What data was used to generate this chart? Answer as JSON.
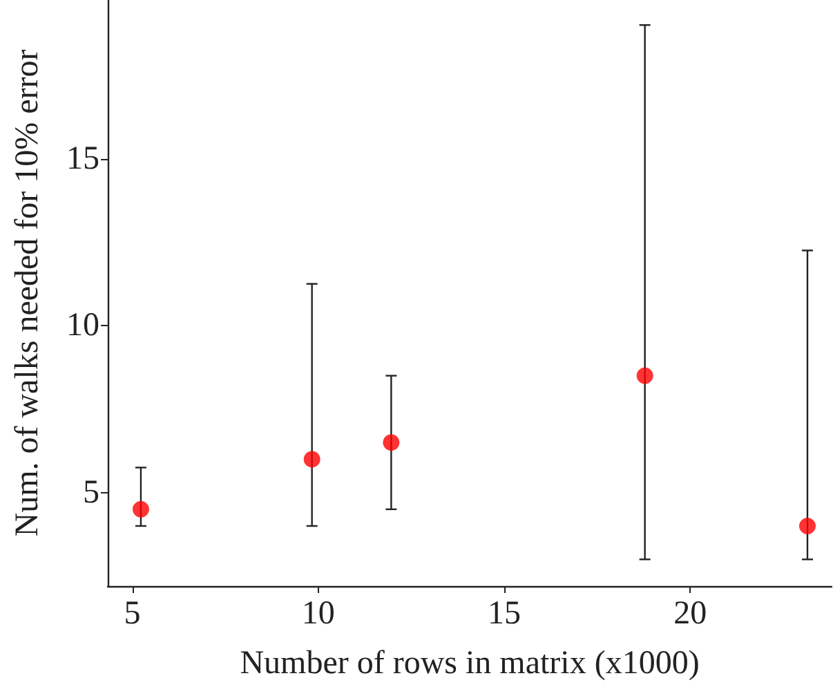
{
  "chart_data": {
    "type": "scatter",
    "xlabel": "Number of rows in matrix (x1000)",
    "ylabel": "Num. of walks needed for 10% error",
    "x": [
      5.23,
      9.83,
      11.96,
      18.78,
      23.15
    ],
    "series": [
      {
        "color": "#ff0000",
        "values": [
          4.5,
          6.0,
          6.5,
          8.5,
          4.0
        ],
        "errors": [
          [
            4.0,
            5.75
          ],
          [
            4.0,
            11.25
          ],
          [
            4.5,
            8.5
          ],
          [
            3.0,
            19.0
          ],
          [
            3.0,
            12.25
          ]
        ]
      }
    ],
    "xlim": [
      4.34,
      23.8
    ],
    "ylim": [
      2.2,
      19.75
    ],
    "xticks": [
      5,
      10,
      15,
      20
    ],
    "yticks": [
      5,
      10,
      15
    ],
    "grid": false,
    "marker": "circle"
  }
}
